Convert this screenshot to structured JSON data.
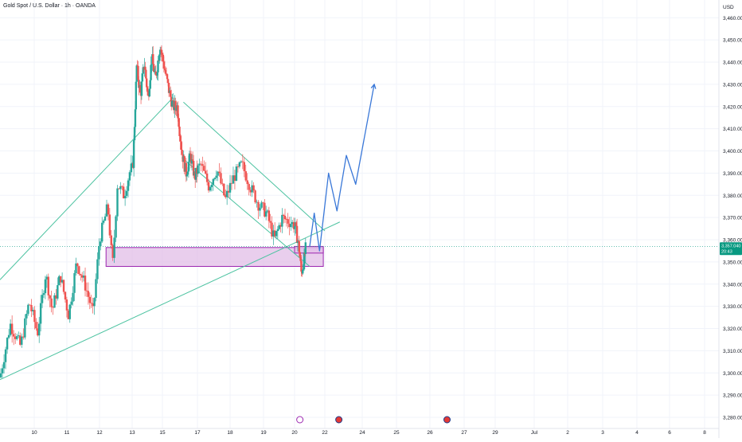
{
  "header": {
    "title": "Gold Spot / U.S. Dollar · 1h · OANDA",
    "currency": "USD"
  },
  "colors": {
    "up": "#26a69a",
    "down": "#ef5350",
    "wick": "#5d606b",
    "trendline": "#4dc3a1",
    "zone_fill": "#e1bee7",
    "zone_stroke": "#9c27b0",
    "projection": "#3a78d8",
    "price_label_bg": "#089981",
    "grid": "#f0f3fa"
  },
  "chart_data": {
    "type": "candlestick",
    "symbol": "XAUUSD",
    "timeframe": "1h",
    "ylim": [
      3275,
      3468
    ],
    "y_ticks": [
      3460,
      3450,
      3440,
      3430,
      3420,
      3410,
      3400,
      3390,
      3380,
      3370,
      3360,
      3350,
      3340,
      3330,
      3320,
      3310,
      3300,
      3290,
      3280
    ],
    "y_tick_labels": [
      "3,460.000",
      "3,450.000",
      "3,440.000",
      "3,430.000",
      "3,420.000",
      "3,410.000",
      "3,400.000",
      "3,390.000",
      "3,380.000",
      "3,370.000",
      "3,360.000",
      "3,350.000",
      "3,340.000",
      "3,330.000",
      "3,320.000",
      "3,310.000",
      "3,300.000",
      "3,290.000",
      "3,280.000"
    ],
    "x_ticks": [
      {
        "label": "10",
        "day": 10
      },
      {
        "label": "11",
        "day": 11
      },
      {
        "label": "12",
        "day": 12
      },
      {
        "label": "13",
        "day": 13
      },
      {
        "label": "15",
        "day": 15
      },
      {
        "label": "17",
        "day": 17
      },
      {
        "label": "18",
        "day": 18
      },
      {
        "label": "19",
        "day": 19
      },
      {
        "label": "20",
        "day": 20
      },
      {
        "label": "22",
        "day": 22
      },
      {
        "label": "24",
        "day": 24
      },
      {
        "label": "25",
        "day": 25
      },
      {
        "label": "26",
        "day": 26
      },
      {
        "label": "27",
        "day": 27
      },
      {
        "label": "29",
        "day": 29
      },
      {
        "label": "Jul",
        "day": 30
      },
      {
        "label": "2",
        "day": 31
      },
      {
        "label": "3",
        "day": 32
      },
      {
        "label": "4",
        "day": 33
      },
      {
        "label": "6",
        "day": 34
      },
      {
        "label": "8",
        "day": 35
      }
    ],
    "last_price": 3357.04,
    "last_price_label": "3,357.040",
    "countdown_label": "20:43",
    "price_path": [
      {
        "day": 9.0,
        "price": 3298
      },
      {
        "day": 9.3,
        "price": 3322
      },
      {
        "day": 9.6,
        "price": 3312
      },
      {
        "day": 9.85,
        "price": 3332
      },
      {
        "day": 10.1,
        "price": 3318
      },
      {
        "day": 10.35,
        "price": 3345
      },
      {
        "day": 10.55,
        "price": 3328
      },
      {
        "day": 10.8,
        "price": 3344
      },
      {
        "day": 11.05,
        "price": 3326
      },
      {
        "day": 11.3,
        "price": 3350
      },
      {
        "day": 11.55,
        "price": 3340
      },
      {
        "day": 11.8,
        "price": 3327
      },
      {
        "day": 12.0,
        "price": 3360
      },
      {
        "day": 12.25,
        "price": 3375
      },
      {
        "day": 12.4,
        "price": 3348
      },
      {
        "day": 12.55,
        "price": 3385
      },
      {
        "day": 12.75,
        "price": 3380
      },
      {
        "day": 12.95,
        "price": 3392
      },
      {
        "day": 13.05,
        "price": 3392
      },
      {
        "day": 13.3,
        "price": 3438
      },
      {
        "day": 13.55,
        "price": 3425
      },
      {
        "day": 13.8,
        "price": 3440
      },
      {
        "day": 14.05,
        "price": 3424
      },
      {
        "day": 14.3,
        "price": 3442
      },
      {
        "day": 14.55,
        "price": 3432
      },
      {
        "day": 14.85,
        "price": 3448
      },
      {
        "day": 15.1,
        "price": 3438
      },
      {
        "day": 15.35,
        "price": 3428
      },
      {
        "day": 15.6,
        "price": 3420
      },
      {
        "day": 15.85,
        "price": 3420
      },
      {
        "day": 16.1,
        "price": 3400
      },
      {
        "day": 16.35,
        "price": 3390
      },
      {
        "day": 16.6,
        "price": 3398
      },
      {
        "day": 16.85,
        "price": 3388
      },
      {
        "day": 17.1,
        "price": 3394
      },
      {
        "day": 17.35,
        "price": 3384
      },
      {
        "day": 17.6,
        "price": 3392
      },
      {
        "day": 17.85,
        "price": 3378
      },
      {
        "day": 18.1,
        "price": 3388
      },
      {
        "day": 18.35,
        "price": 3394
      },
      {
        "day": 18.6,
        "price": 3384
      },
      {
        "day": 18.85,
        "price": 3376
      },
      {
        "day": 19.1,
        "price": 3372
      },
      {
        "day": 19.35,
        "price": 3360
      },
      {
        "day": 19.6,
        "price": 3370
      },
      {
        "day": 19.85,
        "price": 3368
      },
      {
        "day": 20.05,
        "price": 3366
      },
      {
        "day": 20.3,
        "price": 3356
      },
      {
        "day": 20.45,
        "price": 3345
      },
      {
        "day": 20.6,
        "price": 3350
      },
      {
        "day": 20.75,
        "price": 3357
      }
    ],
    "drawings": {
      "support_zone_large": {
        "day_start": 12.2,
        "day_end": 21.9,
        "price_top": 3356.5,
        "price_bottom": 3348
      },
      "support_zone_small": {
        "day_start": 20.0,
        "day_end": 21.9,
        "price_top": 3357,
        "price_bottom": 3354
      },
      "channel_upper": {
        "from": {
          "day": 16.2,
          "price": 3422
        },
        "to": {
          "day": 22.0,
          "price": 3364
        }
      },
      "channel_lower": {
        "from": {
          "day": 16.1,
          "price": 3397
        },
        "to": {
          "day": 21.0,
          "price": 3348
        }
      },
      "trendline_top": {
        "from": {
          "day": 9.0,
          "price": 3342
        },
        "to": {
          "day": 15.6,
          "price": 3424
        }
      },
      "trendline_bottom": {
        "from": {
          "day": 9.0,
          "price": 3297
        },
        "to": {
          "day": 22.8,
          "price": 3368
        }
      },
      "projection": [
        {
          "day": 21.0,
          "price": 3357
        },
        {
          "day": 21.3,
          "price": 3372
        },
        {
          "day": 21.65,
          "price": 3355
        },
        {
          "day": 22.2,
          "price": 3390
        },
        {
          "day": 22.65,
          "price": 3373
        },
        {
          "day": 23.15,
          "price": 3398
        },
        {
          "day": 23.65,
          "price": 3385
        },
        {
          "day": 24.35,
          "price": 3430
        }
      ]
    },
    "event_markers": [
      {
        "day": 20.35,
        "icon": "lightning-icon"
      },
      {
        "day": 22.75,
        "icon": "us-flag-icon"
      },
      {
        "day": 26.5,
        "icon": "us-flag-icon"
      }
    ]
  }
}
